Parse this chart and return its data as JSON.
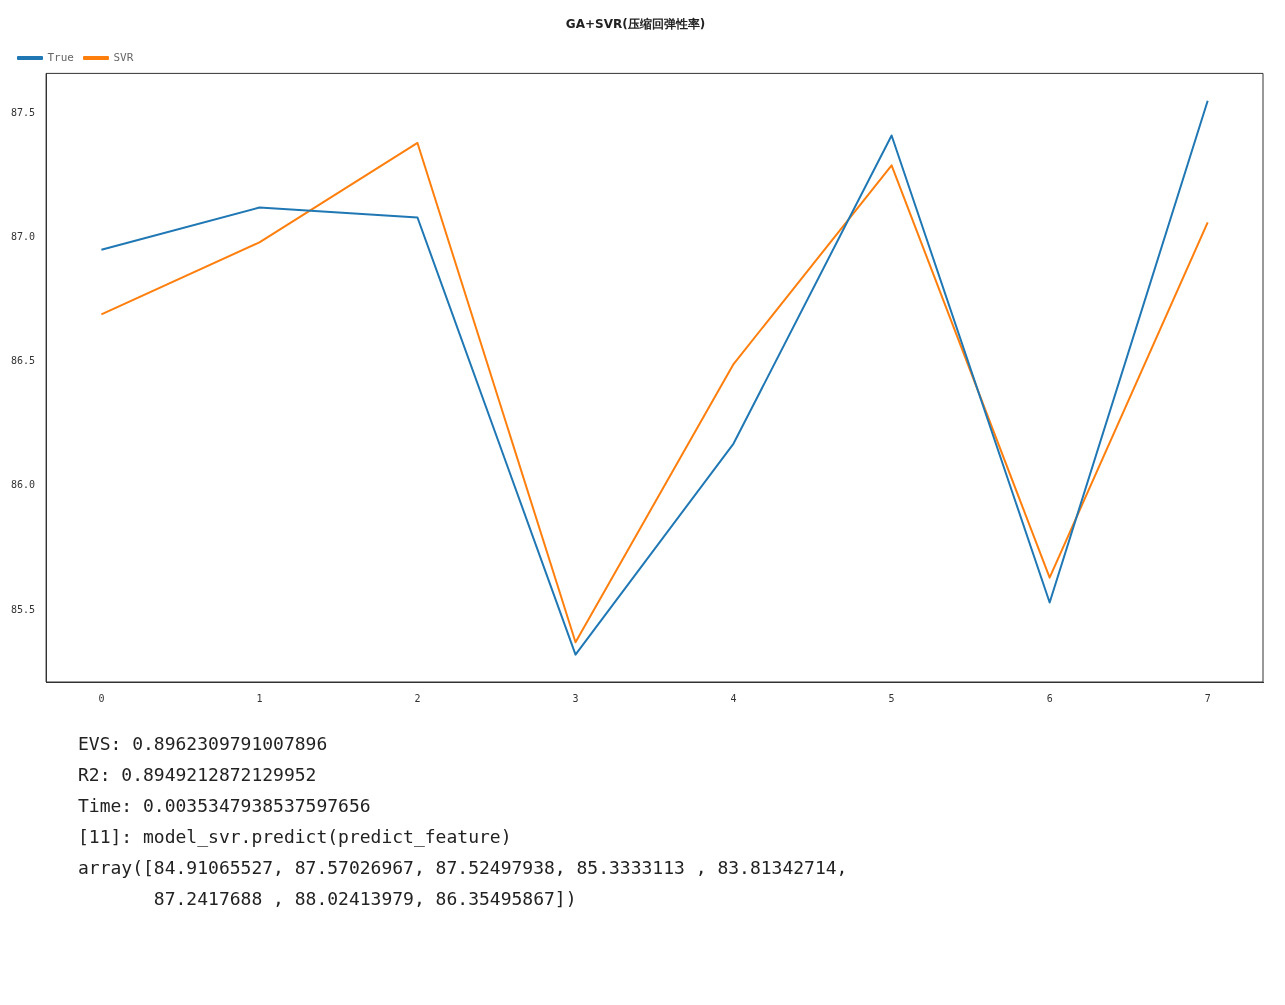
{
  "chart_data": {
    "type": "line",
    "title": "GA+SVR(压缩回弹性率)",
    "x": [
      0,
      1,
      2,
      3,
      4,
      5,
      6,
      7
    ],
    "series": [
      {
        "name": "True",
        "color": "#1f77b4",
        "values": [
          86.95,
          87.12,
          87.08,
          85.32,
          86.17,
          87.41,
          85.53,
          87.55
        ]
      },
      {
        "name": "SVR",
        "color": "#ff7f0e",
        "values": [
          86.69,
          86.98,
          87.38,
          85.37,
          86.49,
          87.29,
          85.63,
          87.06
        ]
      }
    ],
    "xlim": [
      -0.35,
      7.35
    ],
    "xticks": [
      0,
      1,
      2,
      3,
      4,
      5,
      6,
      7
    ],
    "ylim": [
      85.21,
      87.66
    ],
    "yticks": [
      {
        "value": 85.5,
        "label": "85.5"
      },
      {
        "value": 86,
        "label": "86.0"
      },
      {
        "value": 86.5,
        "label": "86.5"
      },
      {
        "value": 87,
        "label": "87.0"
      },
      {
        "value": 87.5,
        "label": "87.5"
      }
    ],
    "legend": "top left",
    "grid": false,
    "marker": "none",
    "line_style": "solid",
    "annotations": [
      "EVS: 0.8962309791007896",
      "R2: 0.8949212872129952",
      "Time: 0.0035347938537597656",
      "[11]: model_svr.predict(predict_feature)",
      "array([84.91065527, 87.57026967, 87.52497938, 85.3333113 , 83.81342714,",
      "       87.2417688 , 88.02413979, 86.35495867])"
    ]
  }
}
